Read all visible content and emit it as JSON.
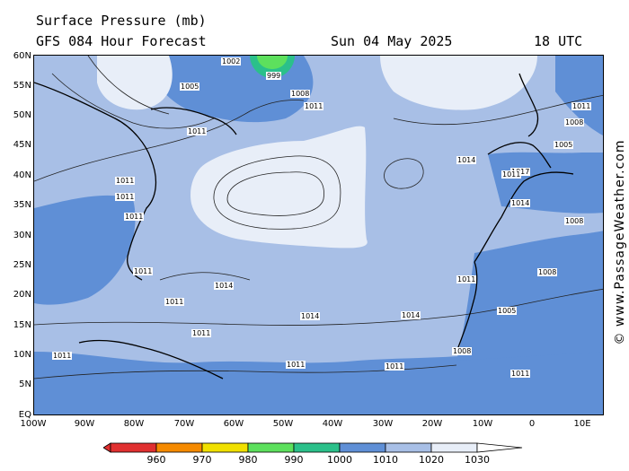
{
  "header": {
    "title": "Surface Pressure (mb)",
    "subtitle": "GFS 084 Hour Forecast",
    "date": "Sun 04 May 2025",
    "time": "18 UTC"
  },
  "watermark": "© www.PassageWeather.com",
  "axes": {
    "lat_labels": [
      "60N",
      "55N",
      "50N",
      "45N",
      "40N",
      "35N",
      "30N",
      "25N",
      "20N",
      "15N",
      "10N",
      "5N",
      "EQ"
    ],
    "lon_labels": [
      "100W",
      "90W",
      "80W",
      "70W",
      "60W",
      "50W",
      "40W",
      "30W",
      "20W",
      "10W",
      "0",
      "10E"
    ]
  },
  "isobar_labels": [
    "1002",
    "999",
    "1005",
    "1008",
    "1011",
    "1014",
    "1017",
    "1011",
    "1014",
    "1011",
    "1008",
    "1005",
    "1014",
    "1011",
    "1011",
    "1014",
    "1011",
    "1014",
    "1011",
    "1011",
    "1008",
    "1005",
    "1008",
    "1011",
    "1011",
    "1011",
    "1008",
    "1011",
    "1011",
    "1011",
    "1011"
  ],
  "legend": {
    "ticks": [
      "960",
      "970",
      "980",
      "990",
      "1000",
      "1010",
      "1020",
      "1030"
    ],
    "colors": [
      "#e03030",
      "#f58a00",
      "#f0e000",
      "#5de05d",
      "#2bc08a",
      "#5f8fd6",
      "#a8bfe6",
      "#e8eef8",
      "#ffffff"
    ]
  }
}
